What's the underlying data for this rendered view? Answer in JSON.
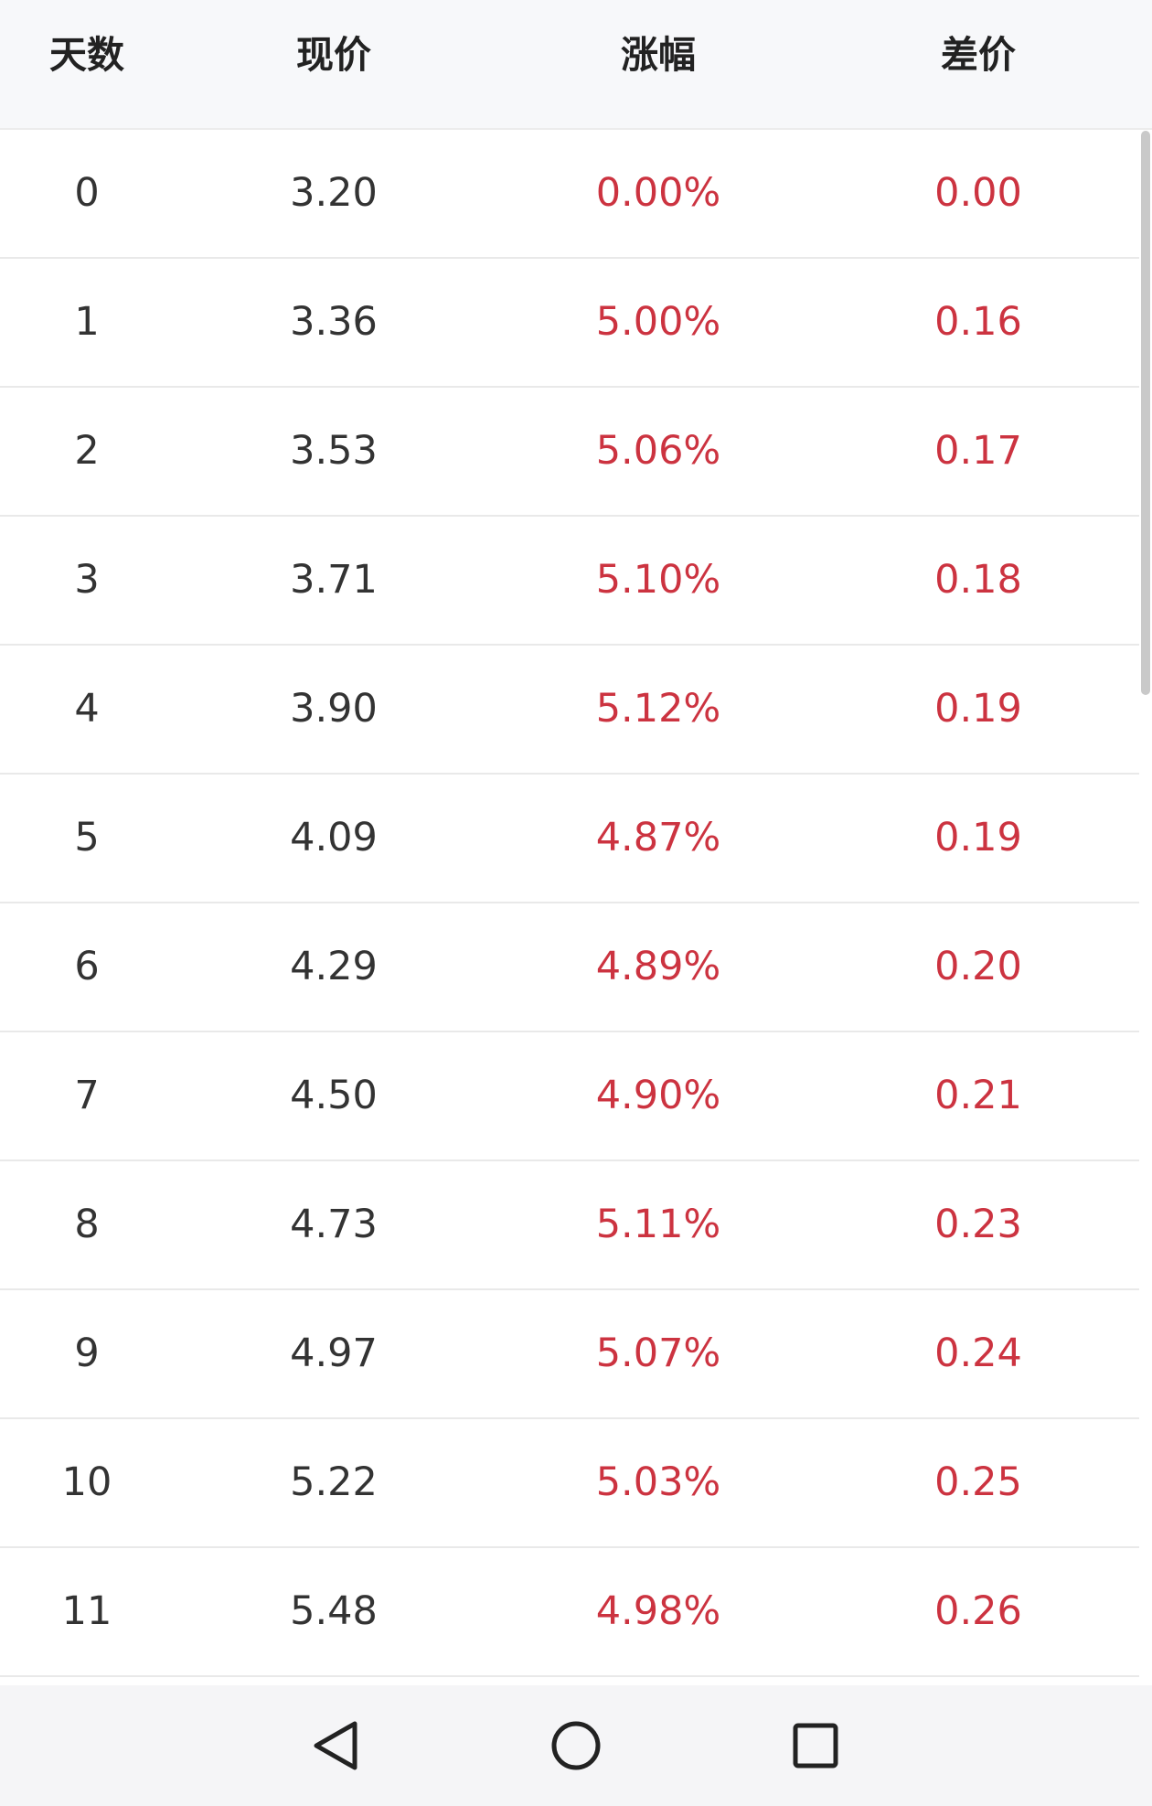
{
  "table": {
    "headers": [
      "天数",
      "现价",
      "涨幅",
      "差价"
    ],
    "rows": [
      {
        "day": "0",
        "price": "3.20",
        "change": "0.00%",
        "diff": "0.00"
      },
      {
        "day": "1",
        "price": "3.36",
        "change": "5.00%",
        "diff": "0.16"
      },
      {
        "day": "2",
        "price": "3.53",
        "change": "5.06%",
        "diff": "0.17"
      },
      {
        "day": "3",
        "price": "3.71",
        "change": "5.10%",
        "diff": "0.18"
      },
      {
        "day": "4",
        "price": "3.90",
        "change": "5.12%",
        "diff": "0.19"
      },
      {
        "day": "5",
        "price": "4.09",
        "change": "4.87%",
        "diff": "0.19"
      },
      {
        "day": "6",
        "price": "4.29",
        "change": "4.89%",
        "diff": "0.20"
      },
      {
        "day": "7",
        "price": "4.50",
        "change": "4.90%",
        "diff": "0.21"
      },
      {
        "day": "8",
        "price": "4.73",
        "change": "5.11%",
        "diff": "0.23"
      },
      {
        "day": "9",
        "price": "4.97",
        "change": "5.07%",
        "diff": "0.24"
      },
      {
        "day": "10",
        "price": "5.22",
        "change": "5.03%",
        "diff": "0.25"
      },
      {
        "day": "11",
        "price": "5.48",
        "change": "4.98%",
        "diff": "0.26"
      }
    ]
  },
  "colors": {
    "positive": "#cc3340",
    "text": "#333333",
    "header_bg": "#f7f8fa"
  },
  "navbar": {
    "icons": [
      "back-icon",
      "home-icon",
      "recents-icon"
    ]
  }
}
